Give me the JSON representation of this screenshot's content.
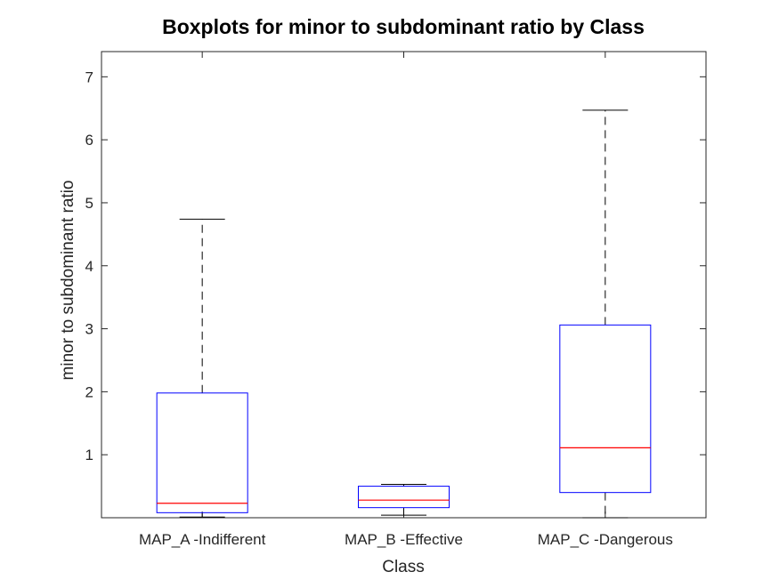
{
  "chart_data": {
    "type": "boxplot",
    "title": "Boxplots for minor to subdominant ratio by Class",
    "xlabel": "Class",
    "ylabel": "minor to subdominant ratio",
    "ylim": [
      0,
      7.4
    ],
    "yticks": [
      1,
      2,
      3,
      4,
      5,
      6,
      7
    ],
    "categories": [
      "MAP_A -Indifferent",
      "MAP_B -Effective",
      "MAP_C -Dangerous"
    ],
    "boxes": [
      {
        "min": 0.01,
        "q1": 0.08,
        "median": 0.23,
        "q3": 1.98,
        "max": 4.74
      },
      {
        "min": 0.04,
        "q1": 0.16,
        "median": 0.28,
        "q3": 0.5,
        "max": 0.53
      },
      {
        "min": 0.0,
        "q1": 0.4,
        "median": 1.11,
        "q3": 3.06,
        "max": 6.47
      }
    ],
    "colors": {
      "box": "#0000ff",
      "median": "#ff0000",
      "whisker": "#000000",
      "axes": "#262626"
    },
    "grid": false,
    "legend": "none"
  }
}
